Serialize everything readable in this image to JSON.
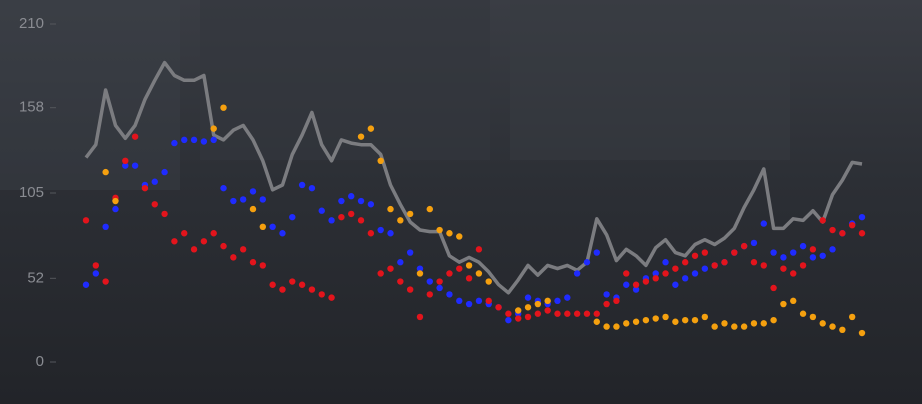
{
  "chart_data": {
    "type": "scatter-line",
    "categories": [
      null,
      null,
      null,
      null,
      null,
      null,
      null,
      null,
      null,
      null,
      null,
      null,
      null,
      null,
      null,
      null,
      null,
      null,
      null,
      null,
      null,
      null,
      null,
      null,
      null,
      null,
      null,
      null,
      null,
      null,
      null,
      null,
      null,
      null,
      null,
      null,
      null,
      null,
      null,
      null,
      null,
      null,
      null,
      null,
      null,
      null,
      null,
      null,
      null,
      null,
      null,
      null,
      null,
      null,
      null,
      null,
      null,
      null,
      null,
      null,
      null,
      null,
      null,
      null,
      null,
      null,
      null,
      null,
      null,
      null,
      null,
      null,
      null,
      null,
      null,
      null,
      null,
      null,
      null,
      null
    ],
    "ylim": [
      0,
      210
    ],
    "yticks": [
      0,
      52,
      105,
      158,
      210
    ],
    "grid": false,
    "series": [
      {
        "kind": "line",
        "color": "#7b7c80",
        "values": [
          127,
          135,
          169,
          147,
          139,
          147,
          163,
          175,
          186,
          178,
          175,
          175,
          178,
          141,
          138,
          144,
          147,
          138,
          125,
          107,
          110,
          129,
          141,
          155,
          135,
          125,
          138,
          136,
          135,
          135,
          129,
          110,
          98,
          87,
          82,
          81,
          81,
          66,
          62,
          65,
          62,
          56,
          48,
          43,
          51,
          60,
          54,
          60,
          58,
          60,
          57,
          62,
          89,
          79,
          63,
          70,
          66,
          60,
          71,
          76,
          68,
          66,
          73,
          76,
          73,
          77,
          83,
          96,
          107,
          120,
          83,
          83,
          89,
          88,
          94,
          87,
          104,
          113,
          124,
          123
        ]
      },
      {
        "kind": "dots",
        "color": "#1f2bff",
        "values": [
          48,
          55,
          84,
          95,
          122,
          122,
          110,
          112,
          118,
          136,
          138,
          138,
          137,
          138,
          108,
          100,
          101,
          106,
          101,
          84,
          80,
          90,
          110,
          108,
          94,
          88,
          100,
          103,
          100,
          98,
          82,
          80,
          62,
          68,
          58,
          50,
          46,
          42,
          38,
          36,
          38,
          36,
          34,
          26,
          30,
          40,
          38,
          36,
          38,
          40,
          55,
          62,
          68,
          42,
          40,
          48,
          45,
          52,
          55,
          62,
          48,
          52,
          55,
          58,
          60,
          62,
          68,
          72,
          74,
          86,
          68,
          65,
          68,
          72,
          65,
          66,
          70,
          80,
          86,
          90
        ]
      },
      {
        "kind": "dots",
        "color": "#e3141c",
        "values": [
          88,
          60,
          50,
          102,
          125,
          140,
          108,
          98,
          92,
          75,
          80,
          70,
          75,
          80,
          72,
          65,
          70,
          62,
          60,
          48,
          45,
          50,
          48,
          45,
          42,
          40,
          90,
          92,
          88,
          80,
          55,
          58,
          50,
          45,
          28,
          42,
          50,
          55,
          58,
          52,
          70,
          38,
          34,
          30,
          27,
          28,
          30,
          32,
          30,
          30,
          30,
          30,
          30,
          36,
          38,
          55,
          48,
          50,
          52,
          55,
          58,
          62,
          66,
          68,
          60,
          62,
          68,
          72,
          62,
          60,
          46,
          58,
          55,
          60,
          70,
          88,
          82,
          80,
          85,
          80
        ]
      },
      {
        "kind": "dots",
        "color": "#f5a00f",
        "values": [
          null,
          null,
          118,
          100,
          null,
          null,
          null,
          null,
          null,
          null,
          null,
          null,
          null,
          145,
          158,
          null,
          null,
          95,
          84,
          null,
          null,
          null,
          null,
          null,
          null,
          null,
          null,
          null,
          140,
          145,
          125,
          95,
          88,
          92,
          55,
          95,
          82,
          80,
          78,
          60,
          55,
          50,
          null,
          null,
          32,
          34,
          36,
          38,
          null,
          null,
          null,
          null,
          25,
          22,
          22,
          24,
          25,
          26,
          27,
          28,
          25,
          26,
          26,
          28,
          22,
          24,
          22,
          22,
          24,
          24,
          26,
          36,
          38,
          30,
          28,
          24,
          22,
          20,
          28,
          18
        ]
      }
    ]
  }
}
